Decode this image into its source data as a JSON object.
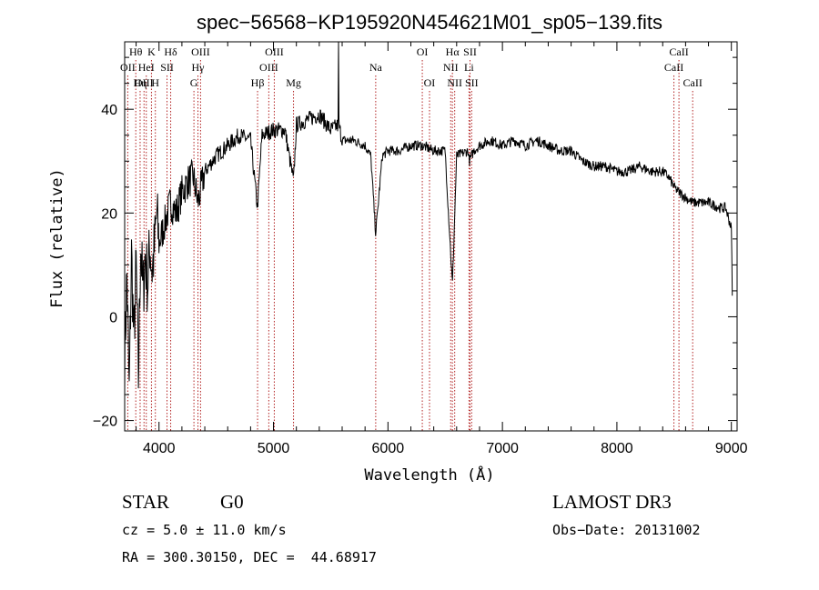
{
  "chart_data": {
    "type": "line",
    "title": "spec−56568−KP195920N454621M01_sp05−139.fits",
    "xlabel": "Wavelength (Å)",
    "ylabel": "Flux (relative)",
    "xlim": [
      3700,
      9050
    ],
    "ylim": [
      -22,
      53
    ],
    "x_ticks": [
      4000,
      5000,
      6000,
      7000,
      8000,
      9000
    ],
    "y_ticks": [
      -20,
      0,
      20,
      40
    ],
    "x_tick_labels": [
      "4000",
      "5000",
      "6000",
      "7000",
      "8000",
      "9000"
    ],
    "y_tick_labels": [
      "−20",
      "0",
      "20",
      "40"
    ],
    "series": [
      {
        "name": "flux",
        "x": [
          3700,
          3720,
          3740,
          3760,
          3780,
          3800,
          3820,
          3840,
          3860,
          3880,
          3900,
          3920,
          3940,
          3960,
          3980,
          4000,
          4050,
          4100,
          4150,
          4200,
          4250,
          4300,
          4340,
          4400,
          4500,
          4600,
          4700,
          4800,
          4860,
          4900,
          5000,
          5100,
          5175,
          5200,
          5300,
          5400,
          5500,
          5570,
          5600,
          5700,
          5800,
          5850,
          5893,
          5950,
          6000,
          6100,
          6200,
          6300,
          6400,
          6500,
          6563,
          6600,
          6700,
          6710,
          6750,
          6800,
          6900,
          7000,
          7100,
          7200,
          7300,
          7400,
          7500,
          7600,
          7700,
          7800,
          7900,
          8000,
          8100,
          8200,
          8300,
          8400,
          8450,
          8500,
          8542,
          8600,
          8662,
          8700,
          8800,
          8900,
          8950,
          9000,
          9010
        ],
        "y": [
          -8,
          8,
          -15,
          12,
          -5,
          10,
          -12,
          15,
          4,
          12,
          6,
          14,
          9,
          13,
          20,
          14,
          18,
          22,
          20,
          24,
          26,
          27,
          22,
          28,
          31,
          33,
          35,
          34,
          21,
          35,
          36,
          36,
          26,
          37,
          38,
          39,
          36,
          37,
          34,
          34,
          33,
          31,
          16,
          31,
          32,
          32,
          33,
          33,
          32,
          32,
          6,
          31,
          32,
          30,
          32,
          33,
          34,
          33,
          34,
          33,
          34,
          33,
          32,
          32,
          30,
          29,
          29,
          28,
          28,
          29,
          28,
          28,
          27,
          25,
          24,
          23,
          22,
          22,
          22,
          21,
          21,
          17,
          2
        ]
      }
    ],
    "annotations": [
      {
        "label": "Hθ",
        "x": 3797,
        "row": 1
      },
      {
        "label": "OII",
        "x": 3727,
        "row": 2
      },
      {
        "label": "OIII",
        "x": 3869,
        "row": 3
      },
      {
        "label": "HeI",
        "x": 3889,
        "row": 2
      },
      {
        "label": "Hη",
        "x": 3835,
        "row": 3
      },
      {
        "label": "K",
        "x": 3934,
        "row": 1
      },
      {
        "label": "H",
        "x": 3968,
        "row": 3
      },
      {
        "label": "Hδ",
        "x": 4102,
        "row": 1
      },
      {
        "label": "SII",
        "x": 4070,
        "row": 2
      },
      {
        "label": "OIII",
        "x": 4363,
        "row": 1
      },
      {
        "label": "Hγ",
        "x": 4340,
        "row": 2
      },
      {
        "label": "G",
        "x": 4305,
        "row": 3
      },
      {
        "label": "OIII",
        "x": 5007,
        "row": 1
      },
      {
        "label": "OIII",
        "x": 4959,
        "row": 2
      },
      {
        "label": "Hβ",
        "x": 4861,
        "row": 3
      },
      {
        "label": "Mg",
        "x": 5175,
        "row": 3
      },
      {
        "label": "Na",
        "x": 5893,
        "row": 2
      },
      {
        "label": "OI",
        "x": 6300,
        "row": 1
      },
      {
        "label": "OI",
        "x": 6363,
        "row": 3
      },
      {
        "label": "Hα",
        "x": 6563,
        "row": 1
      },
      {
        "label": "NII",
        "x": 6548,
        "row": 2
      },
      {
        "label": "NII",
        "x": 6583,
        "row": 3
      },
      {
        "label": "SII",
        "x": 6717,
        "row": 1
      },
      {
        "label": "Li",
        "x": 6708,
        "row": 2
      },
      {
        "label": "SII",
        "x": 6731,
        "row": 3
      },
      {
        "label": "CaII",
        "x": 8542,
        "row": 1
      },
      {
        "label": "CaII",
        "x": 8498,
        "row": 2
      },
      {
        "label": "CaII",
        "x": 8662,
        "row": 3
      }
    ],
    "grid": false,
    "line_color": "#000000",
    "marker_color": "#b22222"
  },
  "info": {
    "object_type": "STAR",
    "subclass": "G0",
    "survey": "LAMOST DR3",
    "redshift": "cz = 5.0 ± 11.0 km/s",
    "obs_date": "Obs−Date: 20131002",
    "coords": "RA = 300.30150, DEC =  44.68917"
  }
}
